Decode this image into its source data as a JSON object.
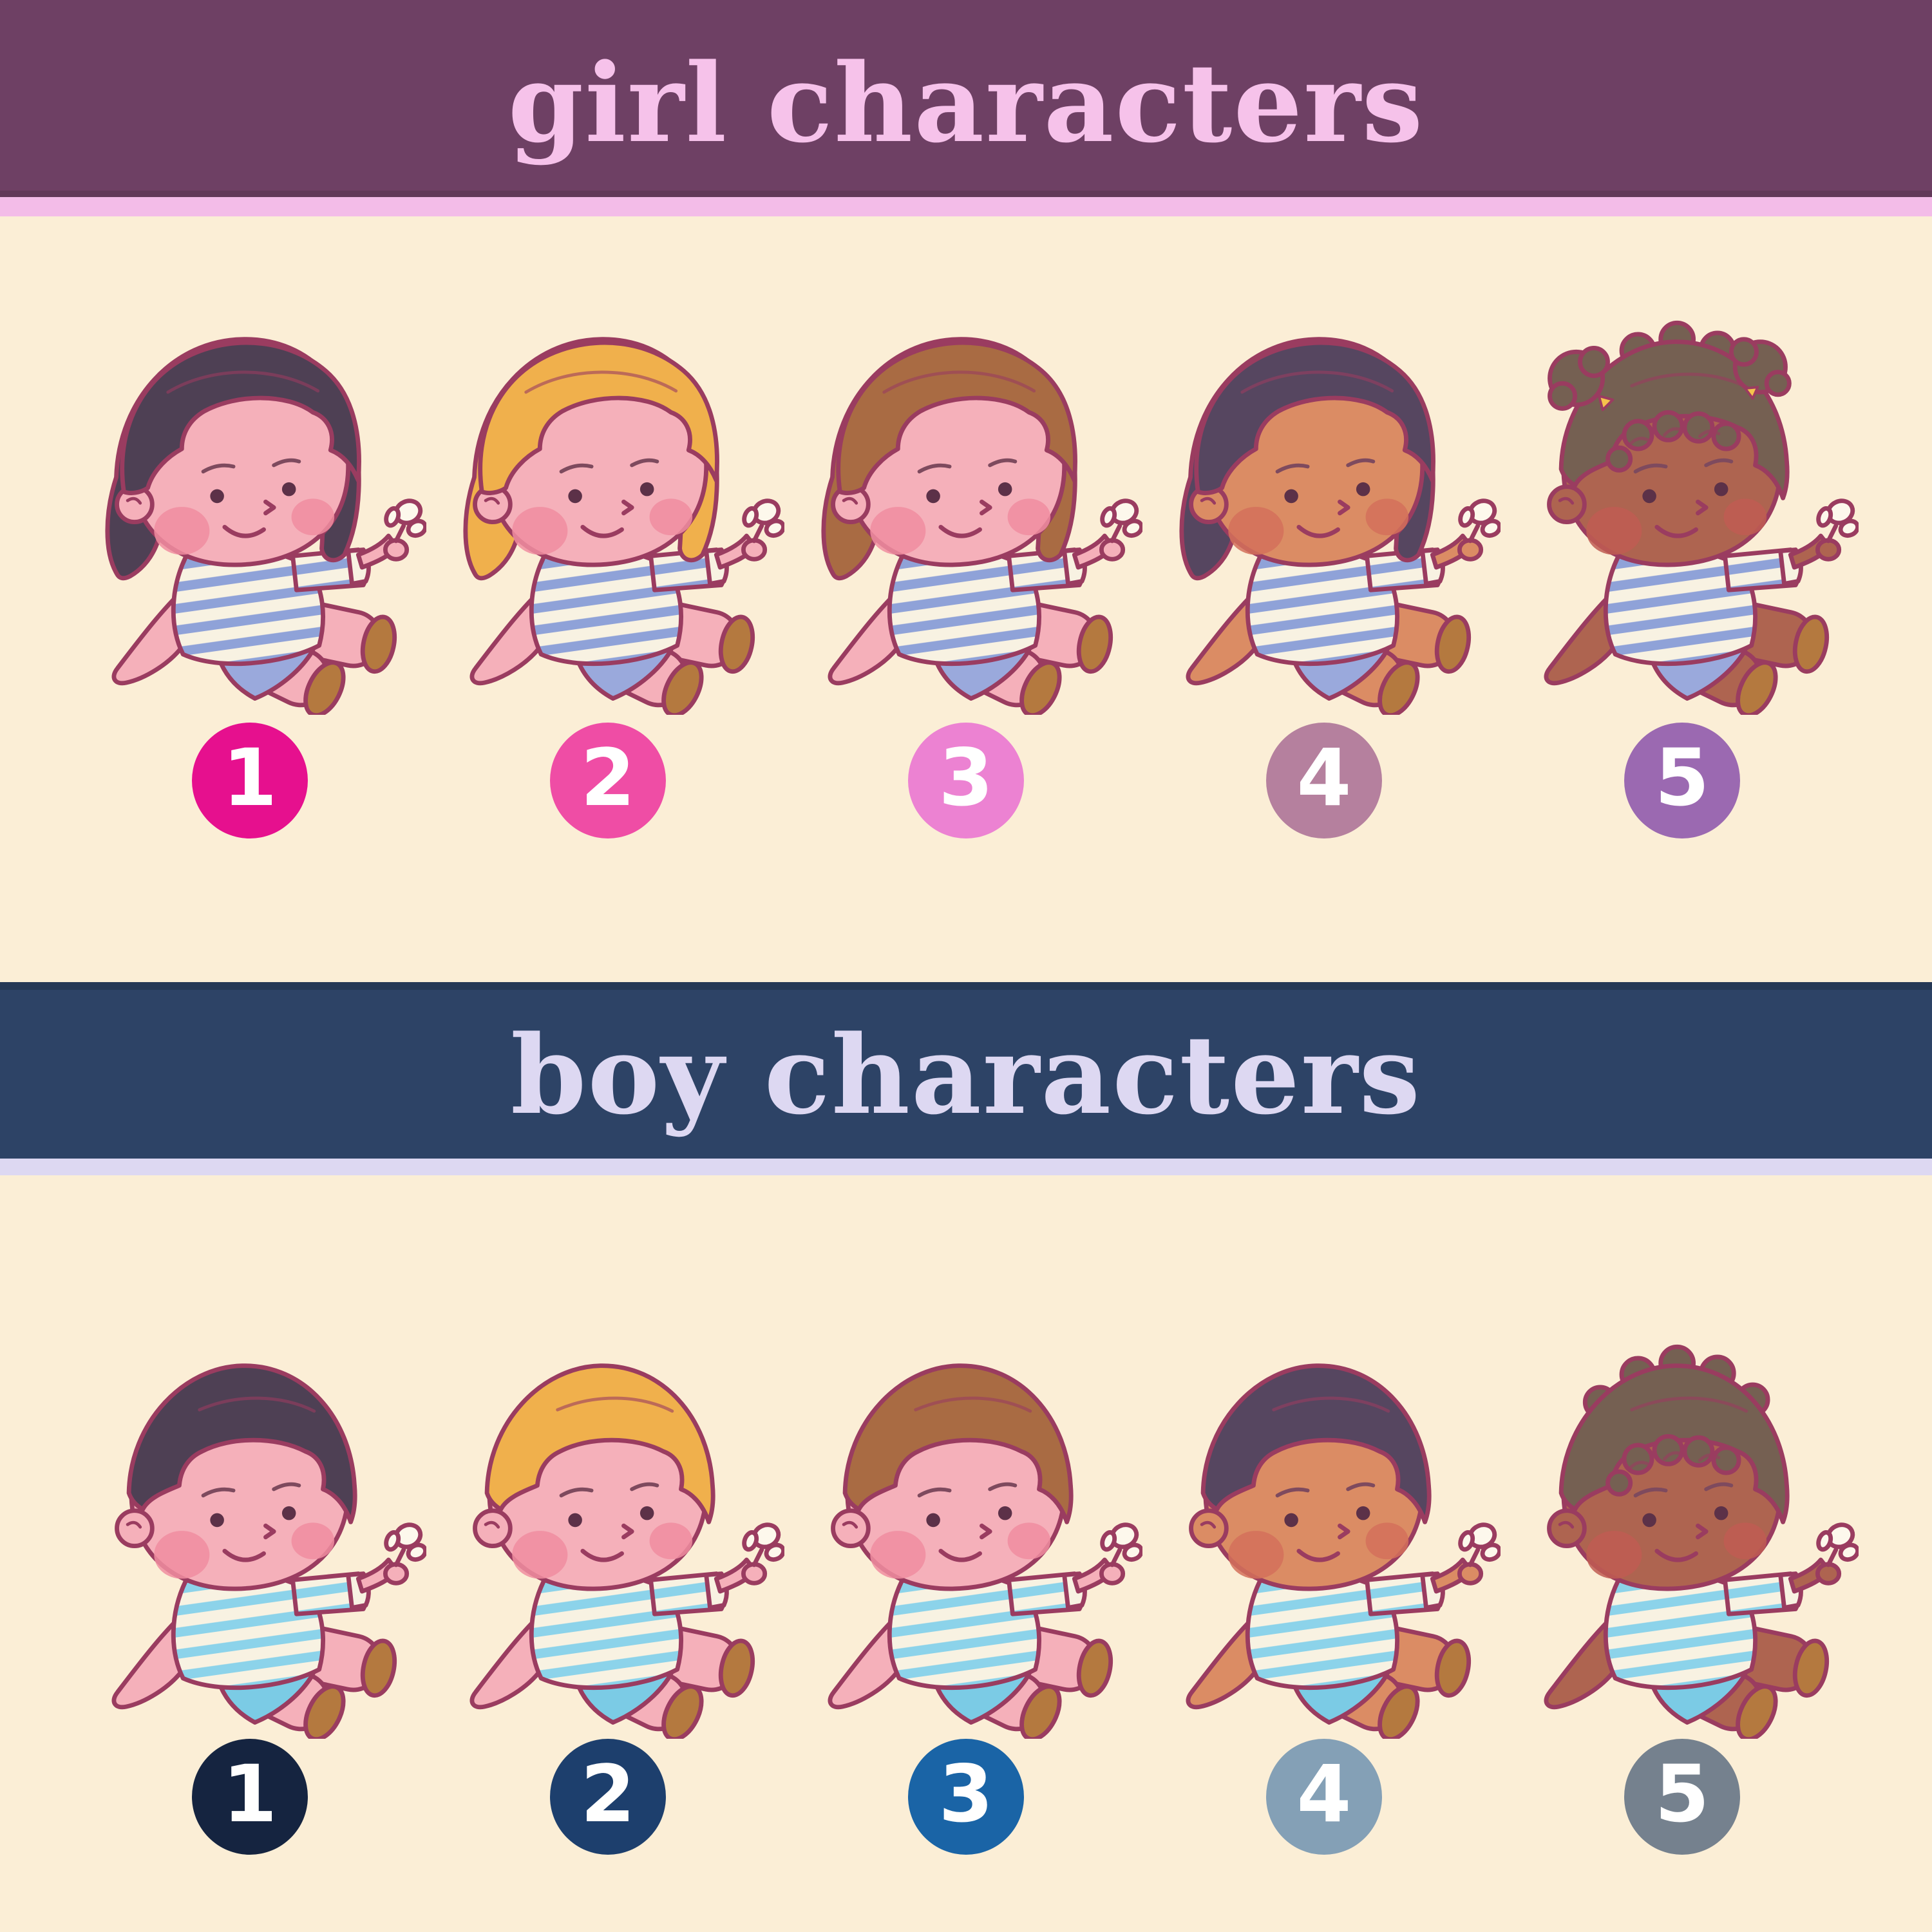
{
  "page": {
    "background": "#FBEED6",
    "art": {
      "outline": "#9A3C60",
      "eye_color": "#5C3148",
      "brow_color": "#7E4A5E",
      "butterfly_color": "#FDF8EC",
      "sole_color": "#B4793F",
      "hair_tie_color": "#F5C34C",
      "shirt_base": "#F8F2E2"
    }
  },
  "sections": [
    {
      "id": "girls",
      "banner": {
        "label": "girl characters",
        "background": "#6E4064",
        "text_color": "#F6C2EA",
        "stripe_color": "#F3BCE8"
      },
      "outfit": {
        "shirt_stripe": "#8FA2D8",
        "shorts": "#9AA9DC"
      },
      "characters": [
        {
          "name": "girl-1",
          "number": "1",
          "badge_color": "#E6108E",
          "description": "light skin, dark bob hair",
          "skin": "#F5B0BA",
          "cheek": "#F08DA0",
          "hair": "#4E4054",
          "hair_style": "bob",
          "toy": "butterfly"
        },
        {
          "name": "girl-2",
          "number": "2",
          "badge_color": "#EF4DA5",
          "description": "light skin, blonde bob hair",
          "skin": "#F5B0BA",
          "cheek": "#F08DA0",
          "hair": "#F0B04C",
          "hair_style": "bob",
          "toy": "butterfly"
        },
        {
          "name": "girl-3",
          "number": "3",
          "badge_color": "#EC82D2",
          "description": "light skin, auburn bob hair",
          "skin": "#F5B0BA",
          "cheek": "#F08DA0",
          "hair": "#A96B43",
          "hair_style": "bob",
          "toy": "butterfly"
        },
        {
          "name": "girl-4",
          "number": "4",
          "badge_color": "#B5809E",
          "description": "tan skin, dark bob hair",
          "skin": "#DB8C64",
          "cheek": "#D4705A",
          "hair": "#564660",
          "hair_style": "bob",
          "toy": "butterfly"
        },
        {
          "name": "girl-5",
          "number": "5",
          "badge_color": "#9B69B1",
          "description": "dark skin, curly hair with two puffs",
          "skin": "#AE6450",
          "cheek": "#C05C52",
          "hair": "#756052",
          "hair_style": "puffs",
          "toy": "butterfly"
        }
      ]
    },
    {
      "id": "boys",
      "banner": {
        "label": "boy characters",
        "background": "#2D4366",
        "text_color": "#DDD8F2",
        "stripe_color": "#DDD8F2"
      },
      "outfit": {
        "shirt_stripe": "#8CD3EA",
        "shorts": "#7BCBE5"
      },
      "characters": [
        {
          "name": "boy-1",
          "number": "1",
          "badge_color": "#152440",
          "description": "light skin, dark short hair",
          "skin": "#F5B0BA",
          "cheek": "#F08DA0",
          "hair": "#4E4054",
          "hair_style": "short",
          "toy": "butterfly"
        },
        {
          "name": "boy-2",
          "number": "2",
          "badge_color": "#1D3F6D",
          "description": "light skin, blonde short hair",
          "skin": "#F5B0BA",
          "cheek": "#F08DA0",
          "hair": "#F0B04C",
          "hair_style": "short",
          "toy": "butterfly"
        },
        {
          "name": "boy-3",
          "number": "3",
          "badge_color": "#1A64A6",
          "description": "light skin, brown short hair",
          "skin": "#F5B0BA",
          "cheek": "#F08DA0",
          "hair": "#A96B43",
          "hair_style": "short",
          "toy": "butterfly"
        },
        {
          "name": "boy-4",
          "number": "4",
          "badge_color": "#84A0B6",
          "description": "tan skin, dark short hair",
          "skin": "#DB8C64",
          "cheek": "#D4705A",
          "hair": "#564660",
          "hair_style": "short",
          "toy": "butterfly"
        },
        {
          "name": "boy-5",
          "number": "5",
          "badge_color": "#75818E",
          "description": "dark skin, curly short hair",
          "skin": "#AE6450",
          "cheek": "#C05C52",
          "hair": "#756052",
          "hair_style": "curly",
          "toy": "butterfly"
        }
      ]
    }
  ]
}
